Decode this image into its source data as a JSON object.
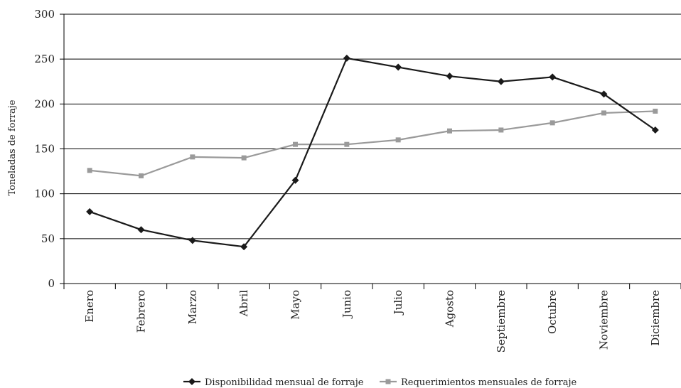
{
  "chart_data": {
    "type": "line",
    "title": "",
    "xlabel": "",
    "ylabel": "Toneladas de forraje",
    "ylim": [
      0,
      300
    ],
    "yticks": [
      0,
      50,
      100,
      150,
      200,
      250,
      300
    ],
    "grid": true,
    "legend_position": "bottom",
    "categories": [
      "Enero",
      "Febrero",
      "Marzo",
      "Abril",
      "Mayo",
      "Junio",
      "Julio",
      "Agosto",
      "Septiembre",
      "Octubre",
      "Noviembre",
      "Diciembre"
    ],
    "series": [
      {
        "name": "Disponibilidad mensual de forraje",
        "color": "#1a1a1a",
        "marker": "diamond",
        "values": [
          80,
          60,
          48,
          41,
          115,
          251,
          241,
          231,
          225,
          230,
          211,
          171
        ]
      },
      {
        "name": "Requerimientos mensuales de forraje",
        "color": "#9a9a9a",
        "marker": "square",
        "values": [
          126,
          120,
          141,
          140,
          155,
          155,
          160,
          170,
          171,
          179,
          190,
          192
        ]
      }
    ]
  }
}
